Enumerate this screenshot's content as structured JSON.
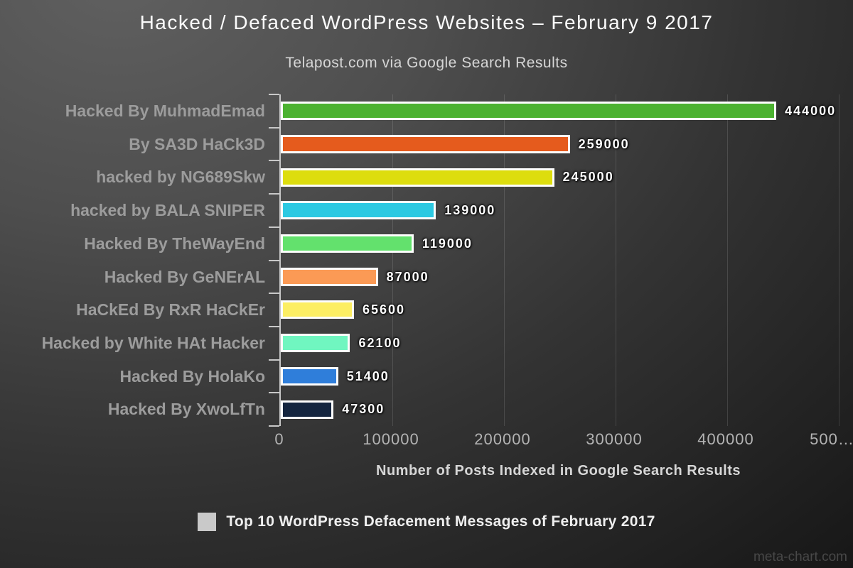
{
  "chart_data": {
    "type": "bar",
    "orientation": "horizontal",
    "title": "Hacked / Defaced WordPress Websites – February 9 2017",
    "subtitle": "Telapost.com via Google Search Results",
    "xlabel": "Number of Posts Indexed in Google Search Results",
    "ylabel": "",
    "categories": [
      "Hacked By MuhmadEmad",
      "By SA3D HaCk3D",
      "hacked by NG689Skw",
      "hacked by BALA SNIPER",
      "Hacked By TheWayEnd",
      "Hacked By GeNErAL",
      "HaCkEd By RxR HaCkEr",
      "Hacked by White HAt Hacker",
      "Hacked By HolaKo",
      "Hacked By XwoLfTn"
    ],
    "values": [
      444000,
      259000,
      245000,
      139000,
      119000,
      87000,
      65600,
      62100,
      51400,
      47300
    ],
    "value_labels": [
      "444000",
      "259000",
      "245000",
      "139000",
      "119000",
      "87000",
      "65600",
      "62100",
      "51400",
      "47300"
    ],
    "bar_colors": [
      "#4cb231",
      "#e55b1d",
      "#dddd0e",
      "#2cc9e2",
      "#63e16d",
      "#fb9a55",
      "#fcee63",
      "#70f6c0",
      "#2f7eda",
      "#14253f"
    ],
    "bar_border_color": "#fdfdfd",
    "xlim": [
      0,
      500000
    ],
    "x_ticks": [
      0,
      100000,
      200000,
      300000,
      400000,
      500000
    ],
    "x_tick_labels": [
      "0",
      "100000",
      "200000",
      "300000",
      "400000",
      "500…"
    ],
    "grid": "vertical-gridlines",
    "legend_position": "bottom",
    "legend": {
      "label": "Top 10 WordPress Defacement Messages of February 2017",
      "swatch_color": "#c9c9c9"
    },
    "colors": {
      "category_label": "#9c9c9c",
      "tick_label": "#b3b3b3",
      "axis": "#c8c8c8",
      "title": "#fbfbfb"
    }
  },
  "watermark": "meta-chart.com"
}
